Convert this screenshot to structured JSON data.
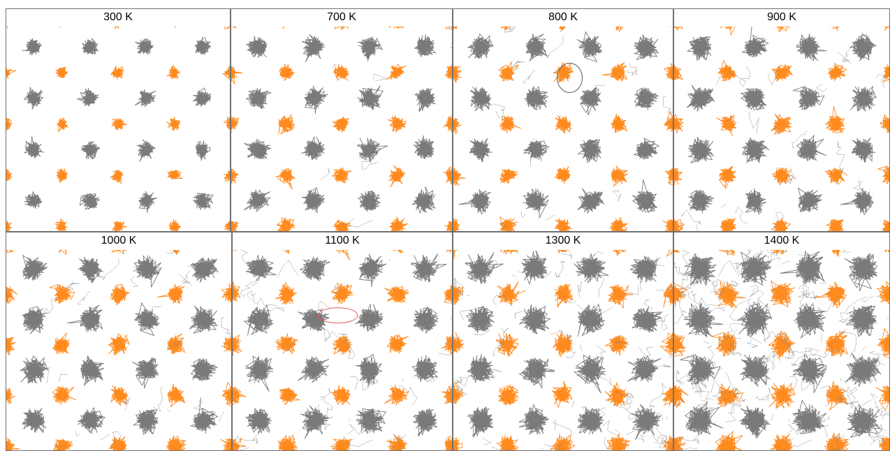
{
  "figure": {
    "colors": {
      "sublattice_a": "#7a7a7a",
      "sublattice_b": "#ff8a1e",
      "highlight_black": "#555555",
      "highlight_red": "#e05a5a"
    },
    "panels": [
      {
        "label": "300 K",
        "temperature": 300,
        "spread": 0.3,
        "noise": 0.0,
        "highlight": null
      },
      {
        "label": "700 K",
        "temperature": 700,
        "spread": 0.55,
        "noise": 0.05,
        "highlight": null
      },
      {
        "label": "800 K",
        "temperature": 800,
        "spread": 0.6,
        "noise": 0.1,
        "highlight": "black"
      },
      {
        "label": "900 K",
        "temperature": 900,
        "spread": 0.65,
        "noise": 0.12,
        "highlight": null
      },
      {
        "label": "1000 K",
        "temperature": 1000,
        "spread": 0.7,
        "noise": 0.15,
        "highlight": null
      },
      {
        "label": "1100 K",
        "temperature": 1100,
        "spread": 0.75,
        "noise": 0.2,
        "highlight": "red"
      },
      {
        "label": "1300 K",
        "temperature": 1300,
        "spread": 0.85,
        "noise": 0.45,
        "highlight": null
      },
      {
        "label": "1400 K",
        "temperature": 1400,
        "spread": 1.0,
        "noise": 0.9,
        "highlight": null
      }
    ]
  }
}
